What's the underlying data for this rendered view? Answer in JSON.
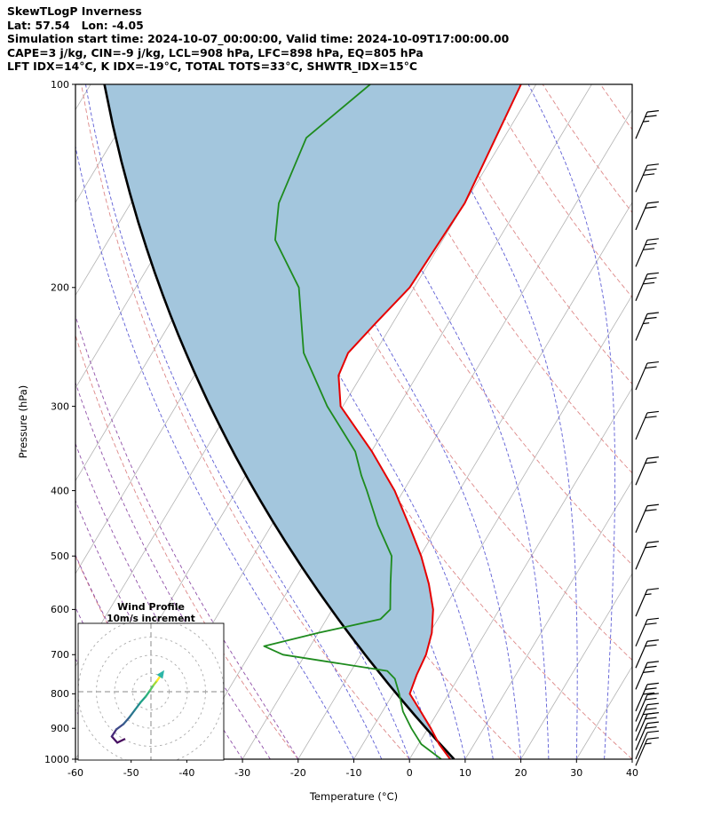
{
  "header": {
    "title": "SkewTLogP Inverness",
    "line2": "Lat: 57.54   Lon: -4.05",
    "line3": "Simulation start time: 2024-10-07_00:00:00, Valid time: 2024-10-09T17:00:00.00",
    "line4": "CAPE=3 j/kg, CIN=-9 j/kg, LCL=908 hPa, LFC=898 hPa, EQ=805 hPa",
    "line5": "LFT IDX=14°C, K IDX=-19°C, TOTAL TOTS=33°C, SHWTR_IDX=15°C"
  },
  "chart_data": {
    "type": "skewt-logp",
    "x_axis": {
      "label": "Temperature (°C)",
      "range": [
        -60,
        40
      ],
      "ticks": [
        -60,
        -50,
        -40,
        -30,
        -20,
        -10,
        0,
        10,
        20,
        30,
        40
      ]
    },
    "y_axis": {
      "label": "Pressure (hPa)",
      "range": [
        100,
        1000
      ],
      "scale": "log",
      "ticks": [
        100,
        200,
        300,
        400,
        500,
        600,
        700,
        800,
        900,
        1000
      ]
    },
    "skew_ratio": 0.6,
    "background": {
      "isotherms": {
        "from": -130,
        "to": 40,
        "step": 10,
        "color": "#b3b3b3"
      },
      "dry_adiabats": {
        "theta_c": [
          -60,
          -40,
          -20,
          0,
          20,
          40,
          60,
          80,
          100,
          120,
          140,
          160,
          180
        ],
        "color": "#dd8888"
      },
      "moist_adiabats": {
        "start_temp_c": [
          -10,
          -5,
          0,
          5,
          10,
          15,
          20,
          25,
          30,
          35,
          40
        ],
        "color": "#5d5dd5"
      },
      "moist_adiabats_cold": {
        "start_temp_c": [
          -55,
          -50,
          -45,
          -40,
          -35,
          -30,
          -25,
          -20
        ],
        "color": "#8f4fa8"
      }
    },
    "series": {
      "temperature": {
        "name": "temperature",
        "color": "#e60000",
        "points": [
          [
            1000,
            7.3
          ],
          [
            950,
            3.7
          ],
          [
            900,
            0.5
          ],
          [
            850,
            -3.1
          ],
          [
            800,
            -7.0
          ],
          [
            750,
            -7.8
          ],
          [
            700,
            -8.3
          ],
          [
            650,
            -9.6
          ],
          [
            600,
            -11.9
          ],
          [
            550,
            -15.4
          ],
          [
            500,
            -19.8
          ],
          [
            450,
            -25.3
          ],
          [
            400,
            -31.6
          ],
          [
            350,
            -39.9
          ],
          [
            300,
            -50.4
          ],
          [
            270,
            -54.1
          ],
          [
            250,
            -54.8
          ],
          [
            225,
            -53.0
          ],
          [
            200,
            -50.8
          ],
          [
            150,
            -50.0
          ],
          [
            100,
            -52.7
          ]
        ]
      },
      "dewpoint": {
        "name": "dewpoint",
        "color": "#1e8b1e",
        "points": [
          [
            1000,
            5.7
          ],
          [
            950,
            0.5
          ],
          [
            900,
            -3.0
          ],
          [
            850,
            -6.3
          ],
          [
            800,
            -8.9
          ],
          [
            760,
            -11.3
          ],
          [
            740,
            -13.5
          ],
          [
            700,
            -34.0
          ],
          [
            680,
            -38.3
          ],
          [
            650,
            -30.0
          ],
          [
            620,
            -20.3
          ],
          [
            600,
            -19.6
          ],
          [
            550,
            -22.3
          ],
          [
            500,
            -25.1
          ],
          [
            450,
            -30.9
          ],
          [
            400,
            -36.6
          ],
          [
            380,
            -39.2
          ],
          [
            350,
            -42.9
          ],
          [
            300,
            -52.8
          ],
          [
            250,
            -62.8
          ],
          [
            200,
            -70.7
          ],
          [
            170,
            -80.1
          ],
          [
            150,
            -83.4
          ],
          [
            120,
            -85.5
          ],
          [
            100,
            -79.8
          ]
        ]
      },
      "parcel_dry_adiabat": {
        "name": "parcel-dry-adiabat",
        "theta_c": 8,
        "color": "#000000"
      },
      "shaded_area": {
        "between": [
          "parcel_dry_adiabat",
          "temperature"
        ],
        "color": "#a3c6dd"
      }
    },
    "indices": {
      "cape_j_kg": 3,
      "cin_j_kg": -9,
      "lcl_hpa": 908,
      "lfc_hpa": 898,
      "eq_hpa": 805,
      "lft_idx_c": 14,
      "k_idx_c": -19,
      "total_tots_c": 33,
      "shwtr_idx_c": 15
    },
    "wind_barbs": {
      "color": "#000000",
      "levels": [
        {
          "p": 115,
          "full": 2,
          "half": 1
        },
        {
          "p": 138,
          "full": 3,
          "half": 0
        },
        {
          "p": 157,
          "full": 2,
          "half": 0
        },
        {
          "p": 178,
          "full": 3,
          "half": 0
        },
        {
          "p": 200,
          "full": 3,
          "half": 0
        },
        {
          "p": 229,
          "full": 2,
          "half": 1
        },
        {
          "p": 271,
          "full": 2,
          "half": 0
        },
        {
          "p": 321,
          "full": 2,
          "half": 0
        },
        {
          "p": 375,
          "full": 2,
          "half": 0
        },
        {
          "p": 441,
          "full": 2,
          "half": 0
        },
        {
          "p": 500,
          "full": 2,
          "half": 0
        },
        {
          "p": 587,
          "full": 1,
          "half": 1
        },
        {
          "p": 650,
          "full": 2,
          "half": 0
        },
        {
          "p": 700,
          "full": 2,
          "half": 0
        },
        {
          "p": 753,
          "full": 3,
          "half": 0
        },
        {
          "p": 811,
          "full": 3,
          "half": 0
        },
        {
          "p": 840,
          "full": 2,
          "half": 0
        },
        {
          "p": 869,
          "full": 3,
          "half": 0
        },
        {
          "p": 897,
          "full": 2,
          "half": 0
        },
        {
          "p": 926,
          "full": 2,
          "half": 0
        },
        {
          "p": 955,
          "full": 1,
          "half": 0
        },
        {
          "p": 977,
          "full": 1,
          "half": 1
        }
      ]
    }
  },
  "hodograph": {
    "title": "Wind Profile",
    "subtitle": "10m/s increment",
    "ring_increment_ms": 10,
    "rings": 4,
    "trace": {
      "points_ms": [
        [
          -14.6,
          -26.1
        ],
        [
          -18.5,
          -28.0
        ],
        [
          -21.5,
          -24.6
        ],
        [
          -19.0,
          -20.7
        ],
        [
          -15.1,
          -17.8
        ],
        [
          -11.7,
          -13.9
        ],
        [
          -8.8,
          -10.0
        ],
        [
          -5.9,
          -6.1
        ],
        [
          -2.9,
          -2.7
        ],
        [
          -0.5,
          0.7
        ],
        [
          1.5,
          3.7
        ],
        [
          3.4,
          6.1
        ],
        [
          5.4,
          9.0
        ]
      ],
      "segment_colors": [
        "#46085c",
        "#471365",
        "#472a7a",
        "#3e4a89",
        "#355e8d",
        "#2b748e",
        "#228b8d",
        "#1fa187",
        "#2db27d",
        "#58c765",
        "#a2da37",
        "#fde725"
      ],
      "arrow_color": "#2cb5a8"
    }
  }
}
